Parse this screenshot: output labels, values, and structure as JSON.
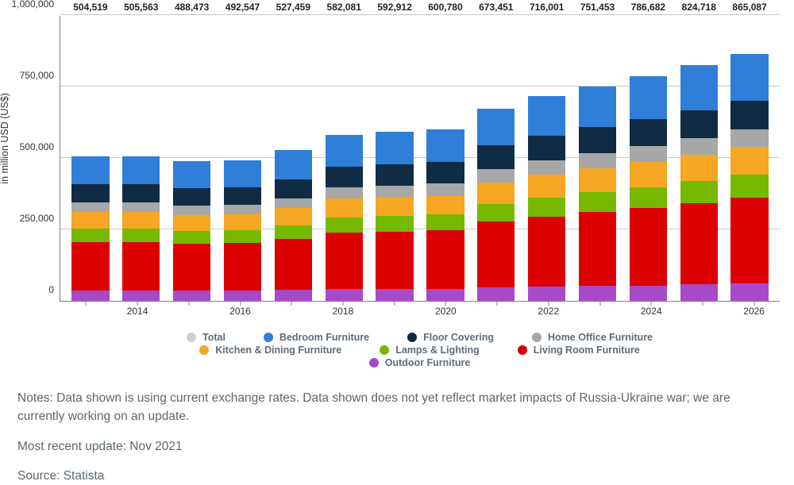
{
  "chart": {
    "type": "stacked-bar",
    "ylabel": "in million USD (US$)",
    "label_fontsize": 12.5,
    "value_label_fontsize": 12,
    "value_label_fontweight": 700,
    "value_label_color": "#222222",
    "background_color": "#ffffff",
    "grid_color": "#c7c7c7",
    "axis_color": "#808080",
    "bar_width": 0.74,
    "ylim": [
      0,
      1000000
    ],
    "ytick_step": 250000,
    "yticks": [
      {
        "v": 0,
        "label": "0"
      },
      {
        "v": 250000,
        "label": "250,000"
      },
      {
        "v": 500000,
        "label": "500,000"
      },
      {
        "v": 750000,
        "label": "750,000"
      },
      {
        "v": 1000000,
        "label": "1,000,000"
      }
    ],
    "xtick_years": [
      "2014",
      "2016",
      "2018",
      "2020",
      "2022",
      "2024",
      "2026"
    ],
    "categories": [
      "2013",
      "2014",
      "2015",
      "2016",
      "2017",
      "2018",
      "2019",
      "2020",
      "2021",
      "2022",
      "2023",
      "2024",
      "2025",
      "2026"
    ],
    "totals": [
      "504,519",
      "505,563",
      "488,473",
      "492,547",
      "527,459",
      "582,081",
      "592,912",
      "600,780",
      "673,451",
      "716,001",
      "751,453",
      "786,682",
      "824,718",
      "865,087"
    ],
    "series_order": [
      "outdoor",
      "living_room",
      "lamps",
      "kitchen_dining",
      "home_office",
      "floor_covering",
      "bedroom"
    ],
    "series": {
      "outdoor": {
        "label": "Outdoor Furniture",
        "color": "#a74ac7",
        "values": [
          37000,
          37000,
          36000,
          36000,
          38000,
          41000,
          41000,
          42000,
          47000,
          50000,
          52000,
          54000,
          57000,
          60000
        ]
      },
      "living_room": {
        "label": "Living Room Furniture",
        "color": "#dc0000",
        "values": [
          170000,
          170000,
          165000,
          166000,
          178000,
          198000,
          202000,
          205000,
          230000,
          245000,
          258000,
          271000,
          285000,
          300000
        ]
      },
      "lamps": {
        "label": "Lamps & Lighting",
        "color": "#76b900",
        "values": [
          46000,
          46000,
          44000,
          45000,
          48000,
          53000,
          54000,
          55000,
          62000,
          66000,
          70000,
          73000,
          77000,
          81000
        ]
      },
      "kitchen_dining": {
        "label": "Kitchen & Dining Furniture",
        "color": "#f5a623",
        "values": [
          58000,
          58000,
          56000,
          56000,
          60000,
          66000,
          67000,
          68000,
          76000,
          81000,
          85000,
          89000,
          93000,
          98000
        ]
      },
      "home_office": {
        "label": "Home Office Furniture",
        "color": "#a7a7a7",
        "values": [
          34000,
          34000,
          33000,
          33000,
          35000,
          39000,
          40000,
          41000,
          46000,
          49000,
          52000,
          55000,
          58000,
          61000
        ]
      },
      "floor_covering": {
        "label": "Floor Covering",
        "color": "#102b44",
        "values": [
          62519,
          63563,
          60473,
          61547,
          66459,
          72081,
          73912,
          74780,
          83451,
          88001,
          91453,
          94682,
          97718,
          100087
        ]
      },
      "bedroom": {
        "label": "Bedroom Furniture",
        "color": "#2f7ed8",
        "values": [
          97000,
          97000,
          94000,
          95000,
          102000,
          113000,
          115000,
          115000,
          129000,
          137000,
          143000,
          150000,
          157000,
          165000
        ]
      }
    },
    "legend": [
      {
        "label": "Total",
        "color": "#cfcfcf"
      },
      {
        "label": "Bedroom Furniture",
        "color": "#2f7ed8"
      },
      {
        "label": "Floor Covering",
        "color": "#102b44"
      },
      {
        "label": "Home Office Furniture",
        "color": "#a7a7a7"
      },
      {
        "label": "Kitchen & Dining Furniture",
        "color": "#f5a623"
      },
      {
        "label": "Lamps & Lighting",
        "color": "#76b900"
      },
      {
        "label": "Living Room Furniture",
        "color": "#dc0000"
      },
      {
        "label": "Outdoor Furniture",
        "color": "#a74ac7"
      }
    ]
  },
  "notes": {
    "line1": "Notes: Data shown is using current exchange rates. Data shown does not yet reflect market impacts of Russia-Ukraine war; we are currently working on an update.",
    "line2": "Most recent update: Nov 2021",
    "line3": "Source: Statista",
    "text_color": "#5b6770",
    "font_size": 15.5
  }
}
